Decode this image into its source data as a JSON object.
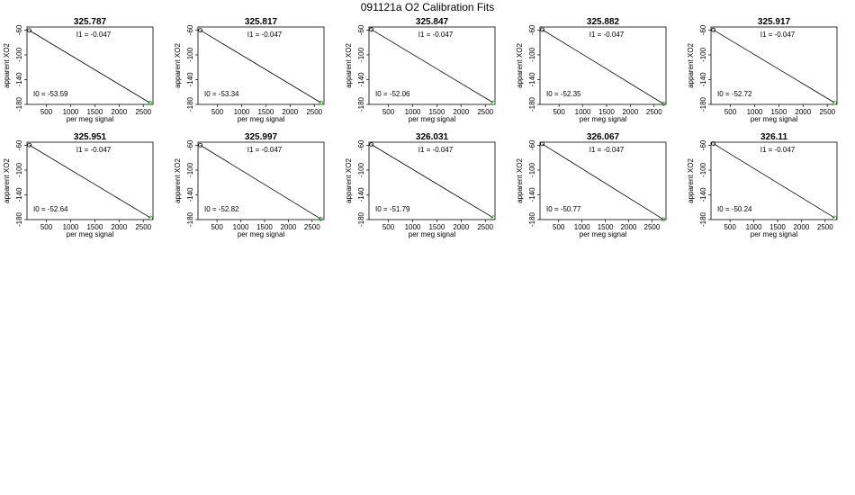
{
  "figure": {
    "title": "091121a   O2 Calibration Fits"
  },
  "chart_data": [
    {
      "type": "scatter",
      "title": "325.787",
      "xlabel": "per meg signal",
      "ylabel": "apparent XO2",
      "xlim": [
        100,
        2700
      ],
      "ylim": [
        -180,
        -55
      ],
      "xticks": [
        500,
        1000,
        1500,
        2000,
        2500
      ],
      "yticks": [
        -60,
        -100,
        -140,
        -180
      ],
      "intercept_label": "I0 =  -53.59",
      "slope_label": "I1 =  -0.047",
      "line": {
        "intercept": -53.59,
        "slope": -0.047
      },
      "points": [
        {
          "x": 150,
          "y": -60.6,
          "color": "#000000"
        },
        {
          "x": 2640,
          "y": -177.7,
          "color": "#22aa22"
        }
      ]
    },
    {
      "type": "scatter",
      "title": "325.817",
      "xlabel": "per meg signal",
      "ylabel": "apparent XO2",
      "xlim": [
        100,
        2700
      ],
      "ylim": [
        -180,
        -55
      ],
      "xticks": [
        500,
        1000,
        1500,
        2000,
        2500
      ],
      "yticks": [
        -60,
        -100,
        -140,
        -180
      ],
      "intercept_label": "I0 =  -53.34",
      "slope_label": "I1 =  -0.047",
      "line": {
        "intercept": -53.34,
        "slope": -0.047
      },
      "points": [
        {
          "x": 150,
          "y": -60.4,
          "color": "#000000"
        },
        {
          "x": 2640,
          "y": -177.4,
          "color": "#22aa22"
        }
      ]
    },
    {
      "type": "scatter",
      "title": "325.847",
      "xlabel": "per meg signal",
      "ylabel": "apparent XO2",
      "xlim": [
        100,
        2700
      ],
      "ylim": [
        -180,
        -55
      ],
      "xticks": [
        500,
        1000,
        1500,
        2000,
        2500
      ],
      "yticks": [
        -60,
        -100,
        -140,
        -180
      ],
      "intercept_label": "I0 =  -52.06",
      "slope_label": "I1 =  -0.047",
      "line": {
        "intercept": -52.06,
        "slope": -0.047
      },
      "points": [
        {
          "x": 150,
          "y": -59.1,
          "color": "#000000"
        },
        {
          "x": 2660,
          "y": -177.1,
          "color": "#22aa22"
        }
      ]
    },
    {
      "type": "scatter",
      "title": "325.882",
      "xlabel": "per meg signal",
      "ylabel": "apparent XO2",
      "xlim": [
        100,
        2750
      ],
      "ylim": [
        -180,
        -55
      ],
      "xticks": [
        500,
        1000,
        1500,
        2000,
        2500
      ],
      "yticks": [
        -60,
        -100,
        -140,
        -180
      ],
      "intercept_label": "I0 =  -52.35",
      "slope_label": "I1 =  -0.047",
      "line": {
        "intercept": -52.35,
        "slope": -0.047
      },
      "points": [
        {
          "x": 150,
          "y": -59.4,
          "color": "#000000"
        },
        {
          "x": 2700,
          "y": -179.2,
          "color": "#22aa22"
        }
      ]
    },
    {
      "type": "scatter",
      "title": "325.917",
      "xlabel": "per meg signal",
      "ylabel": "apparent XO2",
      "xlim": [
        100,
        2700
      ],
      "ylim": [
        -180,
        -55
      ],
      "xticks": [
        500,
        1000,
        1500,
        2000,
        2500
      ],
      "yticks": [
        -60,
        -100,
        -140,
        -180
      ],
      "intercept_label": "I0 =  -52.72",
      "slope_label": "I1 =  -0.047",
      "line": {
        "intercept": -52.72,
        "slope": -0.047
      },
      "points": [
        {
          "x": 150,
          "y": -59.8,
          "color": "#000000"
        },
        {
          "x": 2650,
          "y": -177.3,
          "color": "#22aa22"
        }
      ]
    },
    {
      "type": "scatter",
      "title": "325.951",
      "xlabel": "per meg signal",
      "ylabel": "apparent XO2",
      "xlim": [
        100,
        2700
      ],
      "ylim": [
        -180,
        -55
      ],
      "xticks": [
        500,
        1000,
        1500,
        2000,
        2500
      ],
      "yticks": [
        -60,
        -100,
        -140,
        -180
      ],
      "intercept_label": "I0 =  -52.64",
      "slope_label": "I1 =  -0.047",
      "line": {
        "intercept": -52.64,
        "slope": -0.047
      },
      "points": [
        {
          "x": 150,
          "y": -59.7,
          "color": "#000000"
        },
        {
          "x": 2650,
          "y": -177.2,
          "color": "#22aa22"
        }
      ]
    },
    {
      "type": "scatter",
      "title": "325.997",
      "xlabel": "per meg signal",
      "ylabel": "apparent XO2",
      "xlim": [
        100,
        2750
      ],
      "ylim": [
        -180,
        -55
      ],
      "xticks": [
        500,
        1000,
        1500,
        2000,
        2500
      ],
      "yticks": [
        -60,
        -100,
        -140,
        -180
      ],
      "intercept_label": "I0 =  -52.82",
      "slope_label": "I1 =  -0.047",
      "line": {
        "intercept": -52.82,
        "slope": -0.047
      },
      "points": [
        {
          "x": 150,
          "y": -59.9,
          "color": "#000000"
        },
        {
          "x": 2680,
          "y": -178.8,
          "color": "#22aa22"
        }
      ]
    },
    {
      "type": "scatter",
      "title": "326.031",
      "xlabel": "per meg signal",
      "ylabel": "apparent XO2",
      "xlim": [
        100,
        2700
      ],
      "ylim": [
        -180,
        -55
      ],
      "xticks": [
        500,
        1000,
        1500,
        2000,
        2500
      ],
      "yticks": [
        -60,
        -100,
        -140,
        -180
      ],
      "intercept_label": "I0 =  -51.79",
      "slope_label": "I1 =  -0.047",
      "line": {
        "intercept": -51.79,
        "slope": -0.047
      },
      "points": [
        {
          "x": 150,
          "y": -58.8,
          "color": "#000000"
        },
        {
          "x": 2660,
          "y": -176.8,
          "color": "#22aa22"
        }
      ]
    },
    {
      "type": "scatter",
      "title": "326.067",
      "xlabel": "per meg signal",
      "ylabel": "apparent XO2",
      "xlim": [
        100,
        2800
      ],
      "ylim": [
        -180,
        -55
      ],
      "xticks": [
        500,
        1000,
        1500,
        2000,
        2500
      ],
      "yticks": [
        -60,
        -100,
        -140,
        -180
      ],
      "intercept_label": "I0 =  -50.77",
      "slope_label": "I1 =  -0.047",
      "line": {
        "intercept": -50.77,
        "slope": -0.047
      },
      "points": [
        {
          "x": 150,
          "y": -57.8,
          "color": "#000000"
        },
        {
          "x": 2740,
          "y": -179.6,
          "color": "#22aa22"
        }
      ]
    },
    {
      "type": "scatter",
      "title": "326.11",
      "xlabel": "per meg signal",
      "ylabel": "apparent XO2",
      "xlim": [
        100,
        2750
      ],
      "ylim": [
        -180,
        -55
      ],
      "xticks": [
        500,
        1000,
        1500,
        2000,
        2500
      ],
      "yticks": [
        -60,
        -100,
        -140,
        -180
      ],
      "intercept_label": "I0 =  -50.24",
      "slope_label": "I1 =  -0.047",
      "line": {
        "intercept": -50.24,
        "slope": -0.047
      },
      "points": [
        {
          "x": 150,
          "y": -57.3,
          "color": "#000000"
        },
        {
          "x": 2700,
          "y": -177.1,
          "color": "#22aa22"
        }
      ]
    }
  ]
}
